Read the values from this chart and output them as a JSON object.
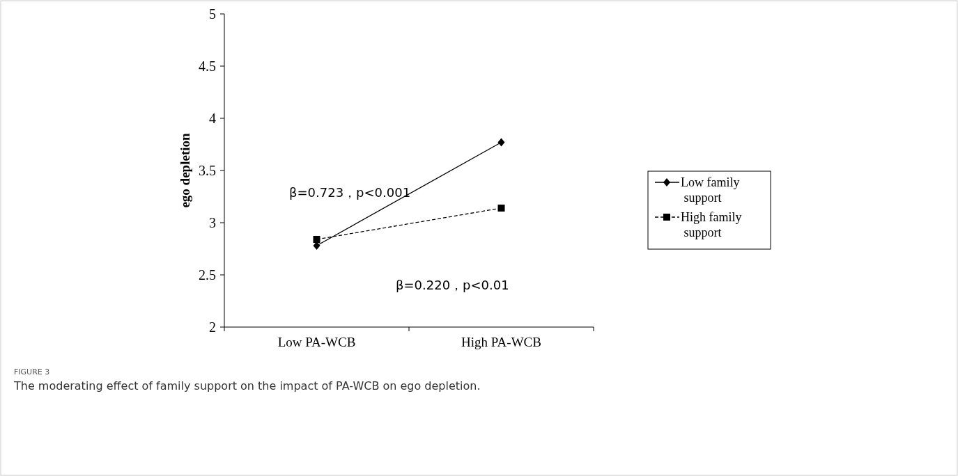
{
  "chart_data": {
    "type": "line",
    "ylabel": "ego depletion",
    "categories": [
      "Low PA-WCB",
      "High PA-WCB"
    ],
    "series": [
      {
        "name": "Low family support",
        "color": "#000000",
        "values": [
          2.78,
          3.77
        ],
        "marker": "diamond",
        "line_style": "solid"
      },
      {
        "name": "High family support",
        "color": "#000000",
        "values": [
          2.84,
          3.14
        ],
        "marker": "square",
        "line_style": "dashed"
      }
    ],
    "ylim": [
      2,
      5
    ],
    "yticks": [
      2,
      2.5,
      3,
      3.5,
      4,
      4.5,
      5
    ],
    "grid": false,
    "legend": "right",
    "annotations": [
      "β=0.723，p<0.001",
      "β=0.220，p<0.01",
      "FIGURE 3",
      "The moderating effect of family support on the impact of PA-WCB on ego depletion."
    ]
  }
}
